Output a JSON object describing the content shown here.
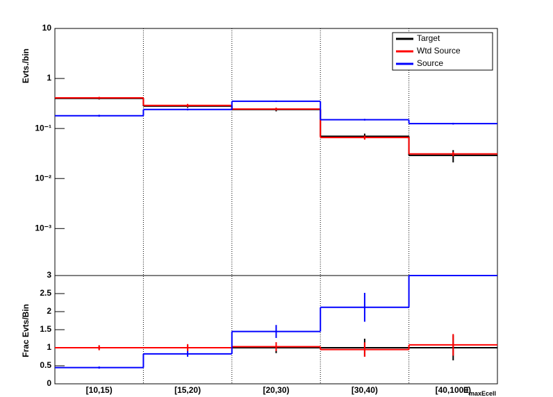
{
  "chart_data": [
    {
      "type": "step",
      "log": true,
      "y_label": "Evts./bin",
      "ylim": [
        0.000115,
        10
      ],
      "yticks": [
        {
          "value": 10,
          "label": "10"
        },
        {
          "value": 1,
          "label": "1"
        },
        {
          "value": 0.1,
          "label": "10⁻¹"
        },
        {
          "value": 0.01,
          "label": "10⁻²"
        },
        {
          "value": 0.001,
          "label": "10⁻³"
        }
      ],
      "legend": "top-right",
      "series": [
        {
          "name": "Target",
          "color": "#000000",
          "values": [
            0.4,
            0.28,
            0.24,
            0.07,
            0.029
          ],
          "errors": [
            0.02,
            0.02,
            0.02,
            0.009,
            0.008
          ]
        },
        {
          "name": "Wtd Source",
          "color": "#ff0000",
          "values": [
            0.41,
            0.29,
            0.245,
            0.066,
            0.031
          ],
          "errors": [
            0.02,
            0.02,
            0.015,
            0.006,
            0.003
          ]
        },
        {
          "name": "Source",
          "color": "#0000ff",
          "values": [
            0.18,
            0.24,
            0.35,
            0.15,
            0.125
          ],
          "errors": [
            0.008,
            0.01,
            0.012,
            0.006,
            0.005
          ]
        }
      ]
    },
    {
      "type": "step",
      "y_label": "Frac Evts/Bin",
      "x_label": "E",
      "x_label_sub": "maxEcell",
      "categories": [
        "[10,15)",
        "[15,20)",
        "[20,30)",
        "[30,40)",
        "[40,1000)"
      ],
      "ylim": [
        0,
        3
      ],
      "yticks": [
        0,
        {
          "value": 0.5,
          "label": "0.5"
        },
        1,
        {
          "value": 1.5,
          "label": "1.5"
        },
        2,
        {
          "value": 2.5,
          "label": "2.5"
        },
        3
      ],
      "series": [
        {
          "color": "#000000",
          "values": [
            1,
            1,
            1,
            1,
            1
          ],
          "errors": [
            0.05,
            0.08,
            0.15,
            0.25,
            0.35
          ]
        },
        {
          "color": "#ff0000",
          "values": [
            1.0,
            1.0,
            1.03,
            0.95,
            1.08
          ],
          "errors": [
            0.07,
            0.1,
            0.12,
            0.2,
            0.3
          ]
        },
        {
          "color": "#0000ff",
          "values": [
            0.45,
            0.83,
            1.45,
            2.12,
            3.0
          ],
          "errors": [
            0.03,
            0.08,
            0.18,
            0.4,
            0.0
          ]
        }
      ]
    }
  ]
}
